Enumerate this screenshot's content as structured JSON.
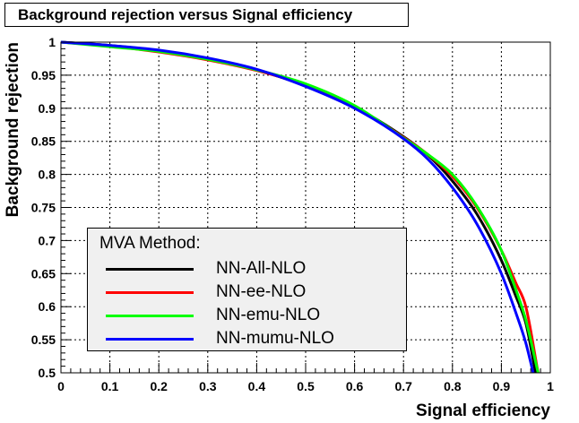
{
  "chart_data": {
    "type": "line",
    "title": "Background rejection versus Signal efficiency",
    "xlabel": "Signal efficiency",
    "ylabel": "Background rejection",
    "xlim": [
      0,
      1
    ],
    "ylim": [
      0.5,
      1
    ],
    "grid": true,
    "x_ticks": [
      "0",
      "0.1",
      "0.2",
      "0.3",
      "0.4",
      "0.5",
      "0.6",
      "0.7",
      "0.8",
      "0.9",
      "1"
    ],
    "y_ticks": [
      "0.5",
      "0.55",
      "0.6",
      "0.65",
      "0.7",
      "0.75",
      "0.8",
      "0.85",
      "0.9",
      "0.95",
      "1"
    ],
    "legend": {
      "title": "MVA Method:",
      "placement": "bottom-left"
    },
    "series": [
      {
        "name": "NN-All-NLO",
        "color": "#000000",
        "points": [
          [
            0,
            1.0
          ],
          [
            0.1,
            0.995
          ],
          [
            0.2,
            0.987
          ],
          [
            0.3,
            0.975
          ],
          [
            0.4,
            0.958
          ],
          [
            0.5,
            0.934
          ],
          [
            0.6,
            0.902
          ],
          [
            0.7,
            0.857
          ],
          [
            0.75,
            0.829
          ],
          [
            0.8,
            0.79
          ],
          [
            0.85,
            0.74
          ],
          [
            0.9,
            0.67
          ],
          [
            0.93,
            0.615
          ],
          [
            0.95,
            0.575
          ],
          [
            0.97,
            0.5
          ]
        ]
      },
      {
        "name": "NN-ee-NLO",
        "color": "#ff0000",
        "points": [
          [
            0,
            1.0
          ],
          [
            0.1,
            0.994
          ],
          [
            0.2,
            0.985
          ],
          [
            0.3,
            0.973
          ],
          [
            0.4,
            0.957
          ],
          [
            0.5,
            0.935
          ],
          [
            0.6,
            0.902
          ],
          [
            0.7,
            0.856
          ],
          [
            0.75,
            0.83
          ],
          [
            0.8,
            0.797
          ],
          [
            0.85,
            0.75
          ],
          [
            0.9,
            0.685
          ],
          [
            0.93,
            0.635
          ],
          [
            0.95,
            0.6
          ],
          [
            0.975,
            0.5
          ]
        ]
      },
      {
        "name": "NN-emu-NLO",
        "color": "#00ff00",
        "points": [
          [
            0,
            1.0
          ],
          [
            0.1,
            0.993
          ],
          [
            0.2,
            0.986
          ],
          [
            0.3,
            0.974
          ],
          [
            0.4,
            0.958
          ],
          [
            0.5,
            0.937
          ],
          [
            0.6,
            0.904
          ],
          [
            0.7,
            0.855
          ],
          [
            0.75,
            0.83
          ],
          [
            0.8,
            0.8
          ],
          [
            0.85,
            0.752
          ],
          [
            0.9,
            0.685
          ],
          [
            0.93,
            0.625
          ],
          [
            0.95,
            0.58
          ],
          [
            0.975,
            0.5
          ]
        ]
      },
      {
        "name": "NN-mumu-NLO",
        "color": "#0000ff",
        "points": [
          [
            0,
            1.0
          ],
          [
            0.1,
            0.995
          ],
          [
            0.2,
            0.988
          ],
          [
            0.3,
            0.976
          ],
          [
            0.4,
            0.959
          ],
          [
            0.5,
            0.933
          ],
          [
            0.6,
            0.9
          ],
          [
            0.7,
            0.854
          ],
          [
            0.75,
            0.823
          ],
          [
            0.8,
            0.78
          ],
          [
            0.85,
            0.725
          ],
          [
            0.9,
            0.65
          ],
          [
            0.93,
            0.59
          ],
          [
            0.95,
            0.545
          ],
          [
            0.965,
            0.5
          ]
        ]
      }
    ]
  }
}
